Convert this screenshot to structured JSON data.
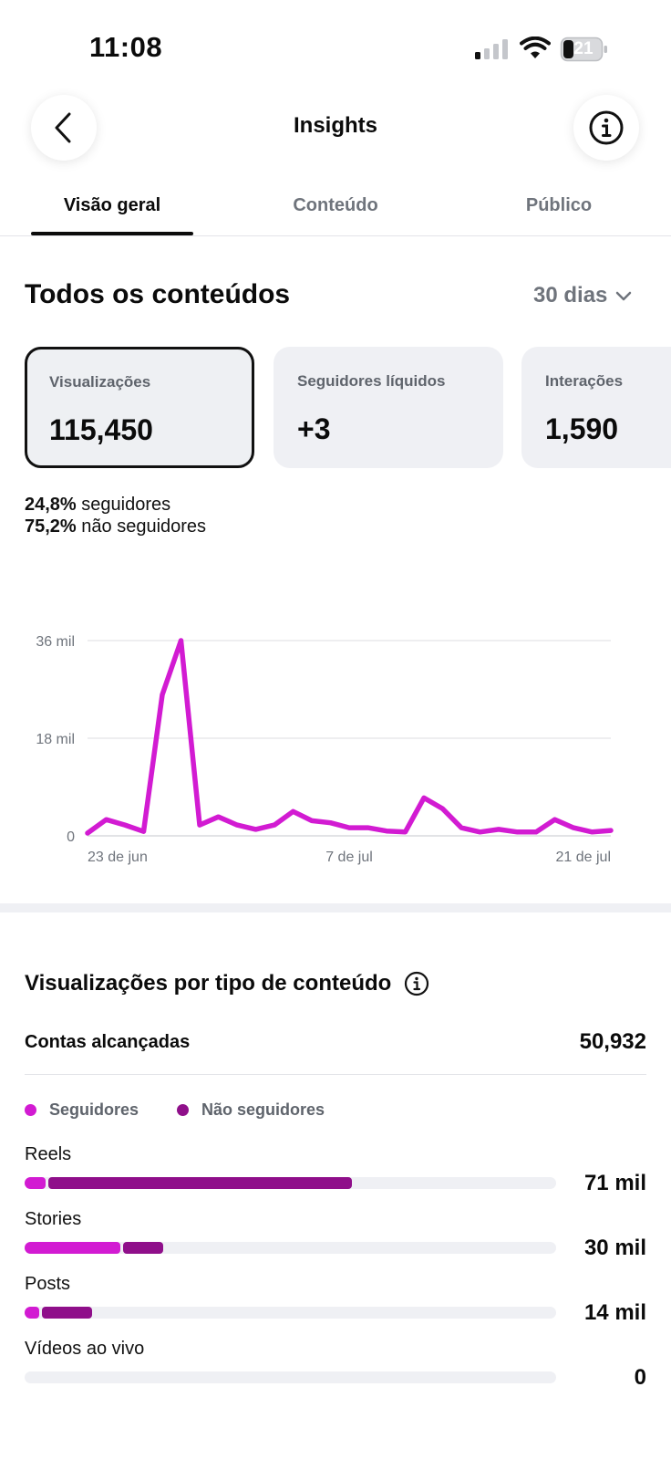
{
  "status_bar": {
    "time": "11:08",
    "battery": "21"
  },
  "header": {
    "title": "Insights"
  },
  "tabs": [
    {
      "label": "Visão geral",
      "active": true
    },
    {
      "label": "Conteúdo",
      "active": false
    },
    {
      "label": "Público",
      "active": false
    }
  ],
  "overview": {
    "title": "Todos os conteúdos",
    "period": "30 dias",
    "metrics": [
      {
        "label": "Visualizações",
        "value": "115,450",
        "selected": true
      },
      {
        "label": "Seguidores líquidos",
        "value": "+3",
        "selected": false
      },
      {
        "label": "Interações",
        "value": "1,590",
        "selected": false
      }
    ],
    "split": {
      "followers_pct": "24,8%",
      "followers_label": "seguidores",
      "non_followers_pct": "75,2%",
      "non_followers_label": "não seguidores"
    }
  },
  "chart_data": {
    "type": "line",
    "x_tick_labels": [
      "23 de jun",
      "7 de jul",
      "21 de jul"
    ],
    "y_tick_labels": [
      "36 mil",
      "18 mil",
      "0"
    ],
    "ylim": [
      0,
      36000
    ],
    "grid": true,
    "series": [
      {
        "color": "#d21bd2",
        "values": [
          500,
          3000,
          2000,
          800,
          26000,
          36000,
          2000,
          3500,
          2000,
          1200,
          2000,
          4500,
          2800,
          2400,
          1500,
          1500,
          900,
          700,
          7000,
          5000,
          1500,
          700,
          1200,
          700,
          700,
          3000,
          1500,
          700,
          1000
        ]
      }
    ]
  },
  "content_types": {
    "title": "Visualizações por tipo de conteúdo",
    "reach_label": "Contas alcançadas",
    "reach_value": "50,932",
    "legend": [
      {
        "label": "Seguidores",
        "color": "#d21bd2"
      },
      {
        "label": "Não seguidores",
        "color": "#8f0f8a"
      }
    ],
    "rows": [
      {
        "label": "Reels",
        "value": "71 mil",
        "followers_fraction": 0.04,
        "non_followers_fraction": 0.57
      },
      {
        "label": "Stories",
        "value": "30 mil",
        "followers_fraction": 0.18,
        "non_followers_fraction": 0.075
      },
      {
        "label": "Posts",
        "value": "14 mil",
        "followers_fraction": 0.027,
        "non_followers_fraction": 0.095
      },
      {
        "label": "Vídeos ao vivo",
        "value": "0",
        "followers_fraction": 0,
        "non_followers_fraction": 0
      }
    ]
  },
  "colors": {
    "accent": "#d21bd2",
    "accent_dark": "#8f0f8a",
    "muted": "#6f747c",
    "card_bg": "#eff0f4"
  }
}
